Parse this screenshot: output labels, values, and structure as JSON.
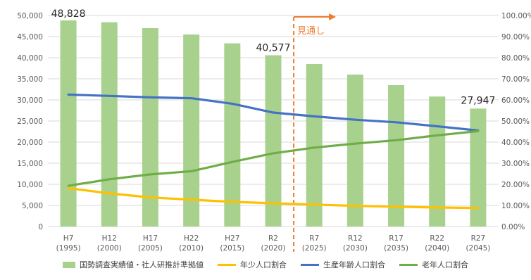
{
  "chart_data": {
    "type": "bar",
    "categories": [
      [
        "H7",
        "(1995)"
      ],
      [
        "H12",
        "(2000)"
      ],
      [
        "H17",
        "(2005)"
      ],
      [
        "H22",
        "(2010)"
      ],
      [
        "H27",
        "(2015)"
      ],
      [
        "R2",
        "(2020)"
      ],
      [
        "R7",
        "(2025)"
      ],
      [
        "R12",
        "(2030)"
      ],
      [
        "R17",
        "(2035)"
      ],
      [
        "R22",
        "(2040)"
      ],
      [
        "R27",
        "(2045)"
      ]
    ],
    "y_left": {
      "min": 0,
      "max": 50000,
      "step": 5000,
      "ticks": [
        "0",
        "5,000",
        "10,000",
        "15,000",
        "20,000",
        "25,000",
        "30,000",
        "35,000",
        "40,000",
        "45,000",
        "50,000"
      ]
    },
    "y_right": {
      "min": 0,
      "max": 100,
      "step": 10,
      "ticks": [
        "0.00%",
        "10.00%",
        "20.00%",
        "30.00%",
        "40.00%",
        "50.00%",
        "60.00%",
        "70.00%",
        "80.00%",
        "90.00%",
        "100.00%"
      ]
    },
    "grid": true,
    "legend_position": "bottom",
    "series": [
      {
        "name": "国勢調査実績値・社人研推計準拠値",
        "kind": "bar",
        "axis": "left",
        "color": "#a9d18e",
        "values": [
          48828,
          48400,
          47000,
          45500,
          43400,
          40577,
          38500,
          36000,
          33500,
          30800,
          27947
        ]
      },
      {
        "name": "年少人口割合",
        "kind": "line",
        "axis": "right",
        "color": "#ffc000",
        "values": [
          18.2,
          15.7,
          13.8,
          12.7,
          11.7,
          11.0,
          10.4,
          9.8,
          9.4,
          9.0,
          8.8
        ]
      },
      {
        "name": "生産年齢人口割合",
        "kind": "line",
        "axis": "right",
        "color": "#4472c4",
        "values": [
          62.5,
          61.9,
          61.2,
          60.8,
          58.2,
          54.0,
          52.2,
          50.6,
          49.4,
          47.5,
          45.5
        ]
      },
      {
        "name": "老年人口割合",
        "kind": "line",
        "axis": "right",
        "color": "#70ad47",
        "values": [
          19.3,
          22.4,
          24.7,
          26.2,
          30.6,
          34.7,
          37.4,
          39.3,
          40.9,
          43.2,
          45.2
        ]
      }
    ],
    "data_labels": [
      {
        "index": 0,
        "text": "48,828"
      },
      {
        "index": 5,
        "text": "40,577"
      },
      {
        "index": 10,
        "text": "27,947"
      }
    ],
    "annotation": {
      "text": "見通し",
      "after_index": 5,
      "color": "#ed7d31"
    }
  }
}
